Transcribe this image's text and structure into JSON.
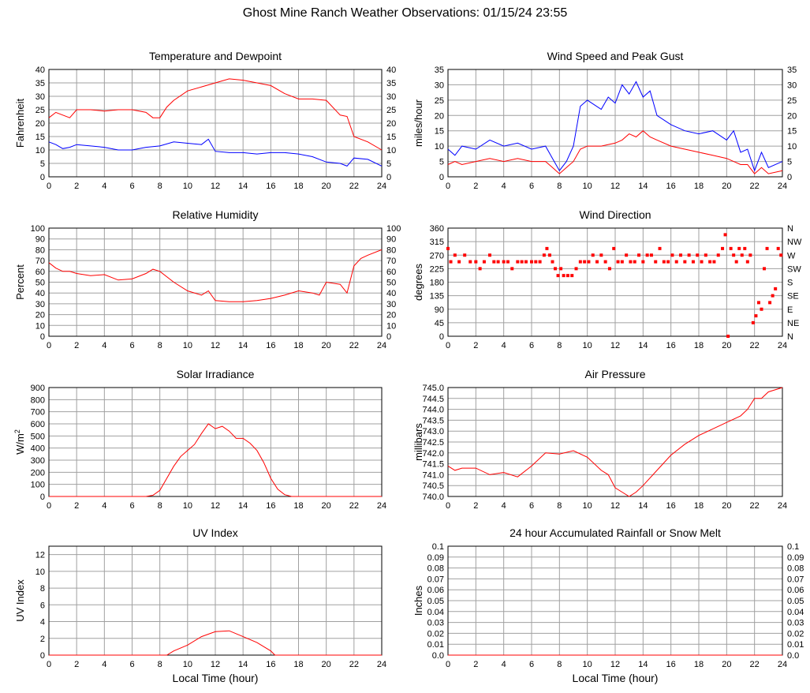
{
  "page": {
    "title": "Ghost Mine Ranch Weather Observations: 01/15/24 23:55"
  },
  "colors": {
    "red": "#ff0000",
    "blue": "#0000ff",
    "grid": "#a0a0a0",
    "frame": "#000000"
  },
  "chart_data": [
    {
      "type": "line",
      "title": "Temperature and Dewpoint",
      "ylabel": "Fahrenheit",
      "xlabel": "",
      "xlim": [
        0,
        24
      ],
      "ylim": [
        0,
        40
      ],
      "x_ticks": [
        0,
        2,
        4,
        6,
        8,
        10,
        12,
        14,
        16,
        18,
        20,
        22,
        24
      ],
      "y_ticks": [
        "0",
        "5",
        "10",
        "15",
        "20",
        "25",
        "30",
        "35",
        "40"
      ],
      "right_ticks": [
        "0",
        "5",
        "10",
        "15",
        "20",
        "25",
        "30",
        "35",
        "40"
      ],
      "grid": true,
      "series": [
        {
          "color": "#ff0000",
          "x": [
            0,
            0.5,
            1,
            1.5,
            2,
            3,
            4,
            5,
            6,
            7,
            7.5,
            8,
            8.5,
            9,
            10,
            11,
            12,
            13,
            14,
            15,
            16,
            17,
            18,
            19,
            20,
            21,
            21.5,
            22,
            23,
            24
          ],
          "y": [
            22,
            24,
            23,
            22,
            25,
            25,
            24.5,
            25,
            25,
            24,
            22,
            22,
            26,
            28.5,
            32,
            33.5,
            35,
            36.5,
            36,
            35,
            34,
            31,
            29,
            29,
            28.5,
            23,
            22.5,
            15,
            13,
            10
          ]
        },
        {
          "color": "#0000ff",
          "x": [
            0,
            0.5,
            1,
            1.5,
            2,
            3,
            4,
            5,
            6,
            7,
            8,
            9,
            10,
            11,
            11.5,
            12,
            13,
            14,
            15,
            16,
            17,
            18,
            19,
            20,
            21,
            21.5,
            22,
            23,
            24
          ],
          "y": [
            13,
            12,
            10.5,
            11,
            12,
            11.5,
            11,
            10,
            10,
            11,
            11.5,
            13,
            12.5,
            12,
            14,
            9.5,
            9,
            9,
            8.5,
            9,
            9,
            8.5,
            7.5,
            5.5,
            5,
            4,
            7,
            6.5,
            4
          ]
        }
      ]
    },
    {
      "type": "line",
      "title": "Wind Speed and Peak Gust",
      "ylabel": "miles/hour",
      "xlabel": "",
      "xlim": [
        0,
        24
      ],
      "ylim": [
        0,
        35
      ],
      "x_ticks": [
        0,
        2,
        4,
        6,
        8,
        10,
        12,
        14,
        16,
        18,
        20,
        22,
        24
      ],
      "y_ticks": [
        "0",
        "5",
        "10",
        "15",
        "20",
        "25",
        "30",
        "35"
      ],
      "right_ticks": [
        "0",
        "5",
        "10",
        "15",
        "20",
        "25",
        "30",
        "35"
      ],
      "grid": true,
      "series": [
        {
          "color": "#0000ff",
          "x": [
            0,
            0.5,
            1,
            2,
            3,
            4,
            5,
            6,
            7,
            7.5,
            8,
            8.5,
            9,
            9.5,
            10,
            11,
            11.5,
            12,
            12.5,
            13,
            13.5,
            14,
            14.5,
            15,
            16,
            17,
            18,
            19,
            20,
            20.5,
            21,
            21.5,
            22,
            22.5,
            23,
            24
          ],
          "y": [
            9,
            7,
            10,
            9,
            12,
            10,
            11,
            9,
            10,
            6,
            2,
            5,
            10,
            23,
            25,
            22,
            26,
            24,
            30,
            27,
            31,
            26,
            28,
            20,
            17,
            15,
            14,
            15,
            12,
            15,
            8,
            9,
            2,
            8,
            3,
            5
          ]
        },
        {
          "color": "#ff0000",
          "x": [
            0,
            0.5,
            1,
            2,
            3,
            4,
            5,
            6,
            7,
            7.5,
            8,
            8.5,
            9,
            9.5,
            10,
            11,
            12,
            12.5,
            13,
            13.5,
            14,
            14.5,
            15,
            16,
            17,
            18,
            19,
            20,
            20.5,
            21,
            21.5,
            22,
            22.5,
            23,
            24
          ],
          "y": [
            4,
            5,
            4,
            5,
            6,
            5,
            6,
            5,
            5,
            3,
            1,
            3,
            5,
            9,
            10,
            10,
            11,
            12,
            14,
            13,
            15,
            13,
            12,
            10,
            9,
            8,
            7,
            6,
            5,
            4,
            4,
            1,
            3,
            1,
            2
          ]
        }
      ]
    },
    {
      "type": "line",
      "title": "Relative Humidity",
      "ylabel": "Percent",
      "xlabel": "",
      "xlim": [
        0,
        24
      ],
      "ylim": [
        0,
        100
      ],
      "x_ticks": [
        0,
        2,
        4,
        6,
        8,
        10,
        12,
        14,
        16,
        18,
        20,
        22,
        24
      ],
      "y_ticks": [
        "0",
        "10",
        "20",
        "30",
        "40",
        "50",
        "60",
        "70",
        "80",
        "90",
        "100"
      ],
      "right_ticks": [
        "0",
        "10",
        "20",
        "30",
        "40",
        "50",
        "60",
        "70",
        "80",
        "90",
        "100"
      ],
      "grid": true,
      "series": [
        {
          "color": "#ff0000",
          "x": [
            0,
            0.5,
            1,
            1.5,
            2,
            3,
            4,
            5,
            6,
            7,
            7.5,
            8,
            9,
            10,
            11,
            11.5,
            12,
            13,
            14,
            15,
            16,
            17,
            18,
            19,
            19.5,
            20,
            21,
            21.5,
            22,
            22.5,
            23,
            24
          ],
          "y": [
            68,
            63,
            60,
            60,
            58,
            56,
            57,
            52,
            53,
            58,
            62,
            60,
            50,
            42,
            38,
            42,
            33,
            32,
            32,
            33,
            35,
            38,
            42,
            40,
            38,
            50,
            48,
            40,
            65,
            72,
            75,
            80
          ]
        }
      ]
    },
    {
      "type": "scatter",
      "title": "Wind Direction",
      "ylabel": "degrees",
      "xlabel": "",
      "xlim": [
        0,
        24
      ],
      "ylim": [
        0,
        360
      ],
      "x_ticks": [
        0,
        2,
        4,
        6,
        8,
        10,
        12,
        14,
        16,
        18,
        20,
        22,
        24
      ],
      "y_ticks": [
        "0",
        "45",
        "90",
        "135",
        "180",
        "225",
        "270",
        "315",
        "360"
      ],
      "right_ticks": [
        "N",
        "NE",
        "E",
        "SE",
        "S",
        "SW",
        "W",
        "NW",
        "N"
      ],
      "grid": true,
      "series": [
        {
          "color": "#ff0000",
          "x": [
            0,
            0.2,
            0.5,
            0.8,
            1.2,
            1.6,
            2,
            2.3,
            2.6,
            3,
            3.3,
            3.6,
            4,
            4.3,
            4.6,
            5,
            5.3,
            5.6,
            6,
            6.3,
            6.6,
            6.9,
            7.1,
            7.3,
            7.5,
            7.7,
            7.9,
            8.1,
            8.3,
            8.6,
            8.9,
            9.2,
            9.5,
            9.8,
            10.1,
            10.4,
            10.7,
            11,
            11.3,
            11.6,
            11.9,
            12.2,
            12.5,
            12.8,
            13.1,
            13.4,
            13.7,
            14,
            14.3,
            14.6,
            14.9,
            15.2,
            15.5,
            15.8,
            16.1,
            16.4,
            16.7,
            17,
            17.3,
            17.6,
            17.9,
            18.2,
            18.5,
            18.8,
            19.1,
            19.4,
            19.7,
            19.9,
            20.1,
            20.3,
            20.5,
            20.7,
            20.9,
            21.1,
            21.3,
            21.5,
            21.7,
            21.9,
            22.1,
            22.3,
            22.5,
            22.7,
            22.9,
            23.1,
            23.3,
            23.5,
            23.7,
            23.9
          ],
          "y": [
            292,
            248,
            270,
            248,
            270,
            248,
            248,
            225,
            248,
            270,
            248,
            248,
            248,
            248,
            225,
            248,
            248,
            248,
            248,
            248,
            248,
            270,
            292,
            270,
            248,
            225,
            202,
            225,
            202,
            202,
            202,
            225,
            248,
            248,
            248,
            270,
            248,
            270,
            248,
            225,
            292,
            248,
            248,
            270,
            248,
            248,
            270,
            248,
            270,
            270,
            248,
            292,
            248,
            248,
            270,
            248,
            270,
            248,
            270,
            248,
            270,
            248,
            270,
            248,
            248,
            270,
            292,
            338,
            0,
            292,
            270,
            248,
            292,
            270,
            292,
            248,
            270,
            45,
            68,
            112,
            90,
            225,
            292,
            112,
            135,
            158,
            292,
            270
          ]
        }
      ]
    },
    {
      "type": "line",
      "title": "Solar Irradiance",
      "ylabel": "W/m2",
      "xlabel": "",
      "xlim": [
        0,
        24
      ],
      "ylim": [
        0,
        900
      ],
      "x_ticks": [
        0,
        2,
        4,
        6,
        8,
        10,
        12,
        14,
        16,
        18,
        20,
        22,
        24
      ],
      "y_ticks": [
        "0",
        "100",
        "200",
        "300",
        "400",
        "500",
        "600",
        "700",
        "800",
        "900"
      ],
      "right_ticks": [],
      "grid": true,
      "series": [
        {
          "color": "#ff0000",
          "x": [
            0,
            7,
            7.5,
            8,
            8.5,
            9,
            9.5,
            10,
            10.5,
            11,
            11.5,
            12,
            12.5,
            13,
            13.5,
            14,
            14.5,
            15,
            15.5,
            16,
            16.5,
            17,
            17.5,
            24
          ],
          "y": [
            0,
            0,
            10,
            50,
            150,
            250,
            330,
            380,
            430,
            520,
            600,
            560,
            580,
            540,
            480,
            480,
            440,
            380,
            280,
            150,
            60,
            15,
            0,
            0
          ]
        }
      ]
    },
    {
      "type": "line",
      "title": "Air Pressure",
      "ylabel": "millibars",
      "xlabel": "",
      "xlim": [
        0,
        24
      ],
      "ylim": [
        740.0,
        745.0
      ],
      "x_ticks": [
        0,
        2,
        4,
        6,
        8,
        10,
        12,
        14,
        16,
        18,
        20,
        22,
        24
      ],
      "y_ticks": [
        "740.0",
        "740.5",
        "741.0",
        "741.5",
        "742.0",
        "742.5",
        "743.0",
        "743.5",
        "744.0",
        "744.5",
        "745.0"
      ],
      "right_ticks": [],
      "grid": true,
      "series": [
        {
          "color": "#ff0000",
          "x": [
            0,
            0.5,
            1,
            2,
            3,
            4,
            5,
            6,
            7,
            8,
            9,
            10,
            11,
            11.5,
            12,
            12.5,
            13,
            13.5,
            14,
            15,
            16,
            17,
            18,
            19,
            20,
            21,
            21.5,
            22,
            22.5,
            23,
            24
          ],
          "y": [
            741.4,
            741.2,
            741.3,
            741.3,
            741.0,
            741.1,
            740.9,
            741.4,
            742.0,
            741.95,
            742.1,
            741.8,
            741.2,
            741.0,
            740.4,
            740.2,
            740.0,
            740.2,
            740.5,
            741.2,
            741.9,
            742.4,
            742.8,
            743.1,
            743.4,
            743.7,
            744.0,
            744.5,
            744.5,
            744.8,
            745.0
          ]
        }
      ]
    },
    {
      "type": "line",
      "title": "UV Index",
      "ylabel": "UV Index",
      "xlabel": "Local Time (hour)",
      "xlim": [
        0,
        24
      ],
      "ylim": [
        0,
        13
      ],
      "x_ticks": [
        0,
        2,
        4,
        6,
        8,
        10,
        12,
        14,
        16,
        18,
        20,
        22,
        24
      ],
      "y_ticks": [
        "0",
        "2",
        "4",
        "6",
        "8",
        "10",
        "12"
      ],
      "right_ticks": [],
      "grid": true,
      "series": [
        {
          "color": "#ff0000",
          "x": [
            0,
            8.5,
            9,
            10,
            11,
            12,
            13,
            14,
            15,
            16,
            16.3,
            24
          ],
          "y": [
            0,
            0,
            0.5,
            1.2,
            2.2,
            2.8,
            2.9,
            2.2,
            1.5,
            0.5,
            0,
            0
          ]
        }
      ]
    },
    {
      "type": "line",
      "title": "24 hour Accumulated Rainfall or Snow Melt",
      "ylabel": "Inches",
      "xlabel": "Local Time (hour)",
      "xlim": [
        0,
        24
      ],
      "ylim": [
        0,
        0.1
      ],
      "x_ticks": [
        0,
        2,
        4,
        6,
        8,
        10,
        12,
        14,
        16,
        18,
        20,
        22,
        24
      ],
      "y_ticks": [
        "0.0",
        "0.01",
        "0.02",
        "0.03",
        "0.04",
        "0.05",
        "0.06",
        "0.07",
        "0.08",
        "0.09",
        "0.1"
      ],
      "right_ticks": [
        "0.0",
        "0.01",
        "0.02",
        "0.03",
        "0.04",
        "0.05",
        "0.06",
        "0.07",
        "0.08",
        "0.09",
        "0.1"
      ],
      "grid": true,
      "series": [
        {
          "color": "#ff0000",
          "x": [
            0,
            24
          ],
          "y": [
            0,
            0
          ]
        }
      ]
    }
  ]
}
